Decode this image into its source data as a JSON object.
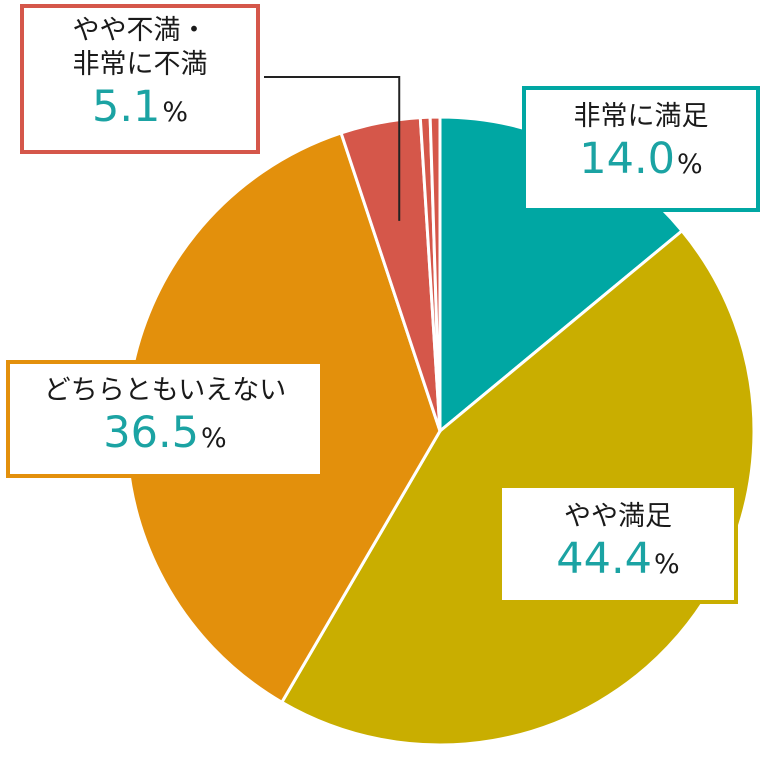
{
  "chart_data": {
    "type": "pie",
    "unit": "%",
    "slices": [
      {
        "label": "非常に満足",
        "value": 14.0,
        "display": "14.0",
        "color": "#00a7a3"
      },
      {
        "label": "やや満足",
        "value": 44.4,
        "display": "44.4",
        "color": "#c9ae00"
      },
      {
        "label": "どちらともいえない",
        "value": 36.5,
        "display": "36.5",
        "color": "#e3900c"
      },
      {
        "label": "やや不満・\n非常に不満",
        "value": 5.1,
        "display": "5.1",
        "color": "#d5574a",
        "parts": [
          {
            "value": 4.1,
            "color": "#d5574a"
          },
          {
            "value": 0.5,
            "color": "#d5574a"
          },
          {
            "value": 0.5,
            "color": "#d5574a"
          }
        ]
      }
    ],
    "start_angle": "12 o'clock",
    "direction": "clockwise",
    "slice_separator_color": "#ffffff",
    "label_value_color": "#1ba3a3"
  }
}
